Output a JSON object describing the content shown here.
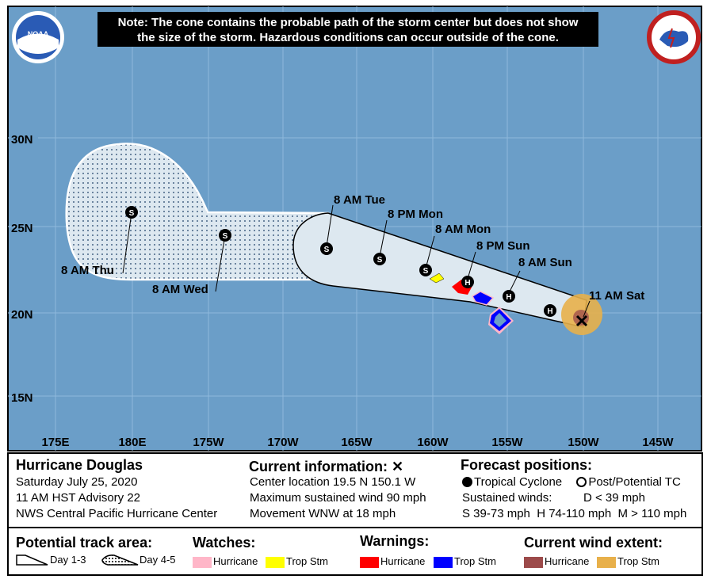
{
  "note": {
    "line1": "Note: The cone contains the probable path of the storm center but does not show",
    "line2": "the size of the storm. Hazardous conditions can occur outside of the cone."
  },
  "logos": {
    "noaa": "NOAA",
    "nws": "NATIONAL WEATHER SERVICE"
  },
  "lat_labels": [
    "30N",
    "25N",
    "20N",
    "15N"
  ],
  "lon_labels": [
    "175E",
    "180E",
    "175W",
    "170W",
    "165W",
    "160W",
    "155W",
    "150W",
    "145W"
  ],
  "forecast_points": [
    {
      "label": "11 AM Sat",
      "symbol": "X"
    },
    {
      "label": "",
      "symbol": "H"
    },
    {
      "label": "8 AM Sun",
      "symbol": "H"
    },
    {
      "label": "8 PM Sun",
      "symbol": "H"
    },
    {
      "label": "8 AM Mon",
      "symbol": "S"
    },
    {
      "label": "8 PM Mon",
      "symbol": "S"
    },
    {
      "label": "8 AM Tue",
      "symbol": "S"
    },
    {
      "label": "8 AM Wed",
      "symbol": "S"
    },
    {
      "label": "8 AM Thu",
      "symbol": "S"
    }
  ],
  "storm": {
    "name": "Hurricane Douglas",
    "date": "Saturday July 25, 2020",
    "advisory": "11 AM HST Advisory 22",
    "center": "NWS Central Pacific Hurricane Center"
  },
  "current_info": {
    "title": "Current information:",
    "marker": "✕",
    "location": "Center location 19.5 N 150.1 W",
    "wind": "Maximum sustained wind 90 mph",
    "movement": "Movement WNW at 18 mph"
  },
  "forecast_positions": {
    "title": "Forecast positions:",
    "tropical": "Tropical Cyclone",
    "post": "Post/Potential TC",
    "sustained": "Sustained winds:",
    "d": "D < 39 mph",
    "scale": "S 39-73 mph  H 74-110 mph  M > 110 mph"
  },
  "legend": {
    "track_title": "Potential track area:",
    "day13": "Day 1-3",
    "day45": "Day 4-5",
    "watches_title": "Watches:",
    "watch_hurricane": "Hurricane",
    "watch_tropstm": "Trop Stm",
    "warnings_title": "Warnings:",
    "warn_hurricane": "Hurricane",
    "warn_tropstm": "Trop Stm",
    "wind_title": "Current wind extent:",
    "wind_hurricane": "Hurricane",
    "wind_tropstm": "Trop Stm"
  },
  "colors": {
    "ocean": "#6b9ec8",
    "cone": "#dde8f0",
    "watch_hurricane": "#ffb6c8",
    "watch_tropstm": "#ffff00",
    "warn_hurricane": "#ff0000",
    "warn_tropstm": "#0000ff",
    "wind_hurricane": "#9c4a4a",
    "wind_tropstm": "#e8b04a"
  }
}
